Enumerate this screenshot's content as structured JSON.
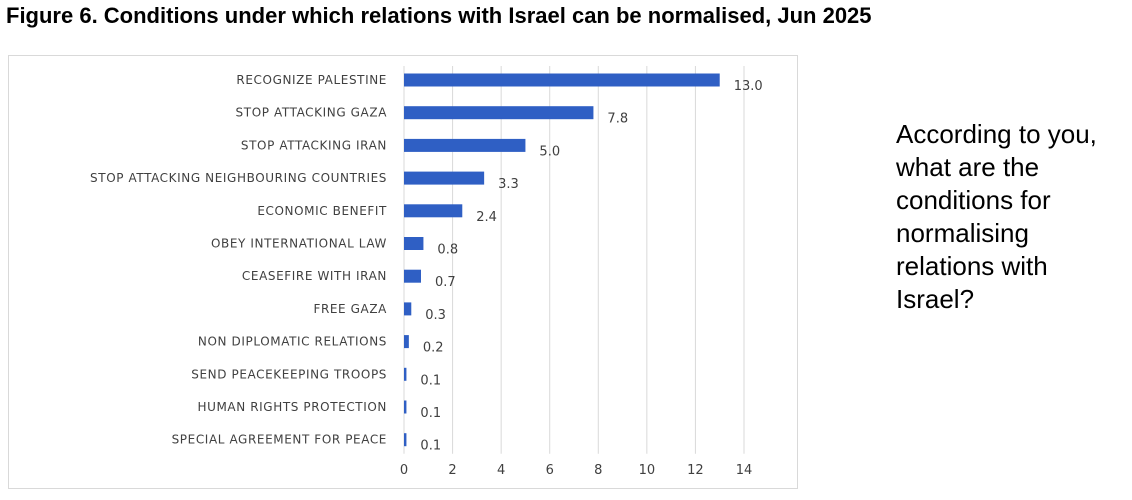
{
  "figure": {
    "title": "Figure 6. Conditions under which relations with Israel can be normalised, Jun 2025"
  },
  "side_text": "According to you, what are the conditions for normalising relations with Israel?",
  "colors": {
    "bar": "#2f5fc4",
    "grid": "#d9d9d9",
    "text": "#404040"
  },
  "chart_data": {
    "type": "bar",
    "orientation": "horizontal",
    "title": "",
    "xlabel": "",
    "ylabel": "",
    "categories": [
      "RECOGNIZE PALESTINE",
      "STOP ATTACKING GAZA",
      "STOP ATTACKING IRAN",
      "STOP ATTACKING NEIGHBOURING COUNTRIES",
      "ECONOMIC BENEFIT",
      "OBEY INTERNATIONAL LAW",
      "CEASEFIRE WITH IRAN",
      "FREE GAZA",
      "NON DIPLOMATIC RELATIONS",
      "SEND PEACEKEEPING TROOPS",
      "HUMAN RIGHTS PROTECTION",
      "SPECIAL AGREEMENT FOR PEACE"
    ],
    "values": [
      13.0,
      7.8,
      5.0,
      3.3,
      2.4,
      0.8,
      0.7,
      0.3,
      0.2,
      0.1,
      0.1,
      0.1
    ],
    "value_labels": [
      "13.0",
      "7.8",
      "5.0",
      "3.3",
      "2.4",
      "0.8",
      "0.7",
      "0.3",
      "0.2",
      "0.1",
      "0.1",
      "0.1"
    ],
    "xlim": [
      0,
      14
    ],
    "x_ticks": [
      "0",
      "2",
      "4",
      "6",
      "8",
      "10",
      "12",
      "14"
    ],
    "grid": "vertical",
    "legend": "none"
  }
}
